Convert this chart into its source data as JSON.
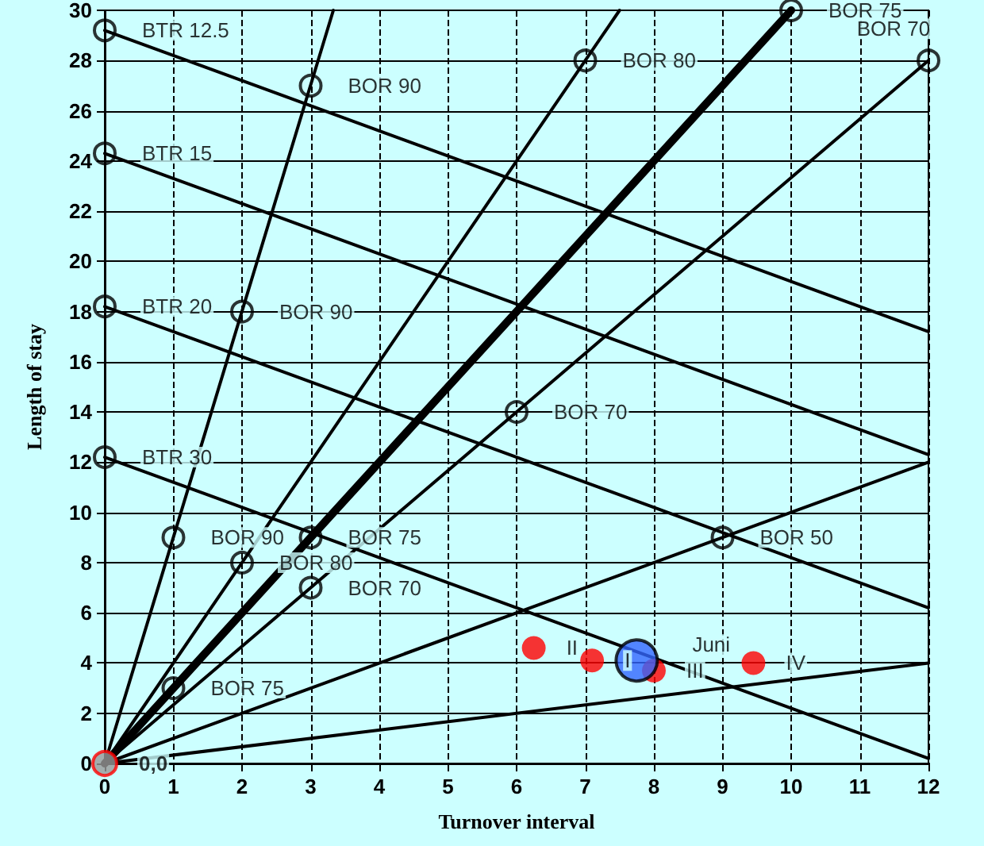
{
  "chart_data": {
    "type": "line",
    "xlabel": "Turnover interval",
    "ylabel": "Length of stay",
    "xlim": [
      0,
      12
    ],
    "ylim": [
      0,
      30
    ],
    "xticks": [
      0,
      1,
      2,
      3,
      4,
      5,
      6,
      7,
      8,
      9,
      10,
      11,
      12
    ],
    "yticks": [
      0,
      2,
      4,
      6,
      8,
      10,
      12,
      14,
      16,
      18,
      20,
      22,
      24,
      26,
      28,
      30
    ],
    "grid": true,
    "line_style": "solid",
    "marker": "none",
    "series": [
      {
        "color": "#000000",
        "x": [
          0,
          3.33
        ],
        "values": [
          0,
          30
        ]
      },
      {
        "color": "#000000",
        "x": [
          0,
          7.5
        ],
        "values": [
          0,
          30
        ]
      },
      {
        "color": "#000000",
        "x": [
          0,
          10
        ],
        "values": [
          0,
          30
        ]
      },
      {
        "color": "#000000",
        "x": [
          0,
          12
        ],
        "values": [
          0,
          28
        ]
      },
      {
        "color": "#000000",
        "x": [
          0,
          12
        ],
        "values": [
          0,
          12
        ]
      },
      {
        "color": "#000000",
        "x": [
          0,
          12
        ],
        "values": [
          0,
          4
        ]
      },
      {
        "color": "#000000",
        "x": [
          0,
          12
        ],
        "values": [
          29.2,
          17.2
        ]
      },
      {
        "color": "#000000",
        "x": [
          0,
          12
        ],
        "values": [
          24.3,
          12.3
        ]
      },
      {
        "color": "#000000",
        "x": [
          0,
          12
        ],
        "values": [
          18.2,
          6.2
        ]
      },
      {
        "color": "#000000",
        "x": [
          0,
          12
        ],
        "values": [
          12.2,
          0.2
        ]
      },
      {
        "type": "scatter",
        "marker": "circle",
        "color": "#000000",
        "x": [
          0,
          0,
          0,
          0,
          3,
          2,
          1,
          2,
          7,
          1,
          3,
          10,
          3,
          6,
          12,
          9
        ],
        "values": [
          29.2,
          24.3,
          18.2,
          12.2,
          27,
          18,
          9,
          8,
          28,
          3,
          9,
          30,
          7,
          14,
          28,
          9
        ],
        "value_labels": [
          "BTR 12.5",
          "BTR 15",
          "BTR 20",
          "BTR 30",
          "BOR 90",
          "BOR 90",
          "BOR 90",
          "BOR 80",
          "BOR 80",
          "BOR 75",
          "BOR 75",
          "BOR 75",
          "BOR 70",
          "BOR 70",
          "BOR 70",
          "BOR 50"
        ]
      },
      {
        "type": "scatter",
        "marker": "circle",
        "color": "#999999",
        "x": [
          0
        ],
        "values": [
          0
        ],
        "value_labels": [
          "0,0"
        ]
      },
      {
        "type": "scatter",
        "marker": "circle",
        "color": "#ff0000",
        "x": [
          6.25,
          7.1,
          8,
          9.45
        ],
        "values": [
          4.6,
          4.1,
          3.7,
          4
        ],
        "value_labels": [
          "II",
          "I",
          "III",
          "IV"
        ]
      },
      {
        "type": "scatter",
        "marker": "circle",
        "color": "#3366ff",
        "x": [
          7.75
        ],
        "values": [
          4.1
        ],
        "value_labels": [
          "Juni"
        ]
      }
    ]
  }
}
